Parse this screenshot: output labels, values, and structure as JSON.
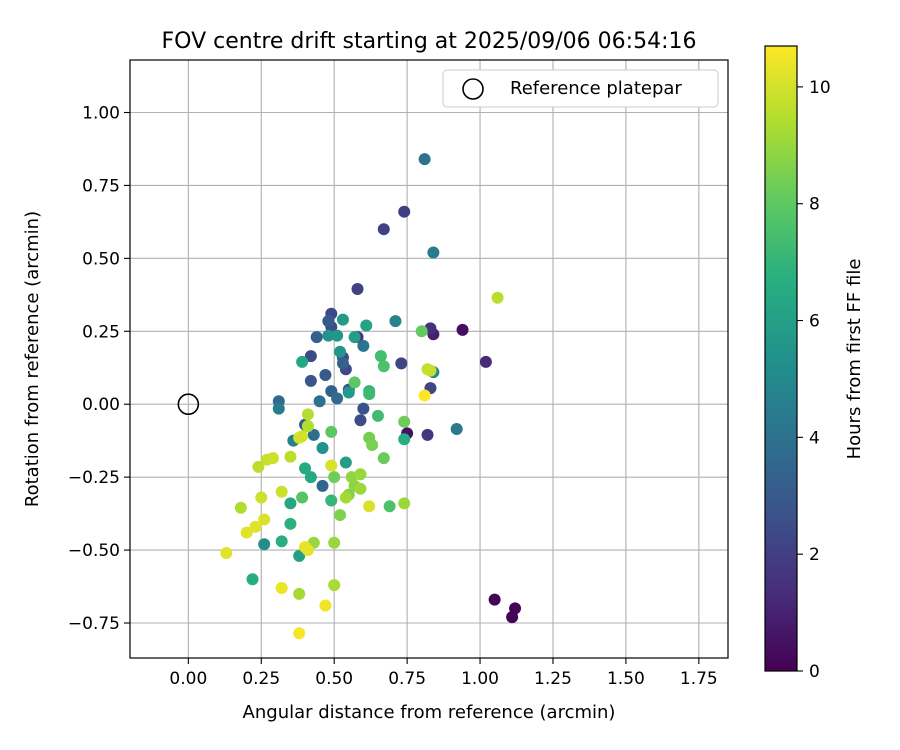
{
  "chart_data": {
    "type": "scatter",
    "title": "FOV centre drift starting at 2025/09/06 06:54:16",
    "xlabel": "Angular distance from reference (arcmin)",
    "ylabel": "Rotation from reference (arcmin)",
    "xlim": [
      -0.2,
      1.85
    ],
    "ylim": [
      -0.87,
      1.18
    ],
    "xticks": [
      "0.00",
      "0.25",
      "0.50",
      "0.75",
      "1.00",
      "1.25",
      "1.50",
      "1.75"
    ],
    "yticks": [
      "−0.75",
      "−0.50",
      "−0.25",
      "0.00",
      "0.25",
      "0.50",
      "0.75",
      "1.00"
    ],
    "grid": true,
    "legend": {
      "position": "top-right",
      "entries": [
        {
          "label": "Reference platepar",
          "marker": "open-circle"
        }
      ]
    },
    "reference_point": {
      "x": 0.0,
      "y": 0.0
    },
    "colorbar": {
      "label": "Hours from first FF file",
      "colormap": "viridis",
      "range": [
        0,
        10.7
      ],
      "ticks": [
        "0",
        "2",
        "4",
        "6",
        "8",
        "10"
      ]
    },
    "series": [
      {
        "points": [
          {
            "x": 1.05,
            "y": -0.67,
            "h": 0.1
          },
          {
            "x": 1.11,
            "y": -0.73,
            "h": 0.1
          },
          {
            "x": 1.12,
            "y": -0.7,
            "h": 0.1
          },
          {
            "x": 0.94,
            "y": 0.255,
            "h": 0.4
          },
          {
            "x": 0.75,
            "y": -0.1,
            "h": 0.5
          },
          {
            "x": 0.84,
            "y": 0.24,
            "h": 0.9
          },
          {
            "x": 1.02,
            "y": 0.145,
            "h": 1.3
          },
          {
            "x": 0.83,
            "y": 0.26,
            "h": 1.4
          },
          {
            "x": 0.58,
            "y": 0.23,
            "h": 1.6
          },
          {
            "x": 0.82,
            "y": -0.105,
            "h": 1.7
          },
          {
            "x": 0.74,
            "y": 0.66,
            "h": 2.0
          },
          {
            "x": 0.67,
            "y": 0.6,
            "h": 2.1
          },
          {
            "x": 0.58,
            "y": 0.395,
            "h": 2.1
          },
          {
            "x": 0.83,
            "y": 0.055,
            "h": 2.2
          },
          {
            "x": 0.73,
            "y": 0.14,
            "h": 2.2
          },
          {
            "x": 0.49,
            "y": 0.31,
            "h": 2.3
          },
          {
            "x": 0.53,
            "y": 0.16,
            "h": 2.3
          },
          {
            "x": 0.54,
            "y": 0.12,
            "h": 2.4
          },
          {
            "x": 0.42,
            "y": 0.165,
            "h": 2.4
          },
          {
            "x": 0.59,
            "y": -0.055,
            "h": 2.5
          },
          {
            "x": 0.49,
            "y": 0.265,
            "h": 2.5
          },
          {
            "x": 0.55,
            "y": 0.05,
            "h": 2.6
          },
          {
            "x": 0.6,
            "y": -0.015,
            "h": 2.7
          },
          {
            "x": 0.42,
            "y": 0.08,
            "h": 2.8
          },
          {
            "x": 0.47,
            "y": 0.1,
            "h": 3.0
          },
          {
            "x": 0.48,
            "y": 0.285,
            "h": 3.0
          },
          {
            "x": 0.4,
            "y": -0.07,
            "h": 3.2
          },
          {
            "x": 0.44,
            "y": 0.23,
            "h": 3.2
          },
          {
            "x": 0.49,
            "y": 0.045,
            "h": 3.3
          },
          {
            "x": 0.53,
            "y": 0.14,
            "h": 3.4
          },
          {
            "x": 0.46,
            "y": -0.28,
            "h": 3.5
          },
          {
            "x": 0.31,
            "y": 0.01,
            "h": 3.6
          },
          {
            "x": 0.51,
            "y": 0.02,
            "h": 3.7
          },
          {
            "x": 0.43,
            "y": -0.105,
            "h": 3.8
          },
          {
            "x": 0.81,
            "y": 0.84,
            "h": 4.0
          },
          {
            "x": 0.45,
            "y": 0.01,
            "h": 4.0
          },
          {
            "x": 0.6,
            "y": 0.2,
            "h": 4.1
          },
          {
            "x": 0.92,
            "y": -0.085,
            "h": 4.3
          },
          {
            "x": 0.84,
            "y": 0.52,
            "h": 4.4
          },
          {
            "x": 0.31,
            "y": -0.015,
            "h": 4.5
          },
          {
            "x": 0.36,
            "y": -0.125,
            "h": 4.6
          },
          {
            "x": 0.71,
            "y": 0.285,
            "h": 4.8
          },
          {
            "x": 0.84,
            "y": 0.11,
            "h": 5.0
          },
          {
            "x": 0.26,
            "y": -0.48,
            "h": 5.2
          },
          {
            "x": 0.46,
            "y": -0.15,
            "h": 5.4
          },
          {
            "x": 0.48,
            "y": 0.235,
            "h": 5.5
          },
          {
            "x": 0.52,
            "y": 0.18,
            "h": 5.6
          },
          {
            "x": 0.51,
            "y": 0.235,
            "h": 5.6
          },
          {
            "x": 0.55,
            "y": 0.04,
            "h": 5.7
          },
          {
            "x": 0.53,
            "y": 0.29,
            "h": 5.8
          },
          {
            "x": 0.54,
            "y": -0.2,
            "h": 5.9
          },
          {
            "x": 0.38,
            "y": -0.52,
            "h": 6.0
          },
          {
            "x": 0.57,
            "y": 0.23,
            "h": 6.0
          },
          {
            "x": 0.61,
            "y": 0.27,
            "h": 6.2
          },
          {
            "x": 0.39,
            "y": 0.145,
            "h": 6.3
          },
          {
            "x": 0.35,
            "y": -0.34,
            "h": 6.3
          },
          {
            "x": 0.42,
            "y": -0.25,
            "h": 6.4
          },
          {
            "x": 0.4,
            "y": -0.22,
            "h": 6.5
          },
          {
            "x": 0.22,
            "y": -0.6,
            "h": 6.6
          },
          {
            "x": 0.74,
            "y": -0.12,
            "h": 6.6
          },
          {
            "x": 0.32,
            "y": -0.47,
            "h": 6.7
          },
          {
            "x": 0.35,
            "y": -0.41,
            "h": 6.8
          },
          {
            "x": 0.62,
            "y": 0.045,
            "h": 7.0
          },
          {
            "x": 0.49,
            "y": -0.33,
            "h": 7.1
          },
          {
            "x": 0.62,
            "y": 0.035,
            "h": 7.2
          },
          {
            "x": 0.65,
            "y": -0.04,
            "h": 7.3
          },
          {
            "x": 0.66,
            "y": 0.165,
            "h": 7.4
          },
          {
            "x": 0.67,
            "y": 0.13,
            "h": 7.6
          },
          {
            "x": 0.69,
            "y": -0.35,
            "h": 7.6
          },
          {
            "x": 0.39,
            "y": -0.32,
            "h": 7.8
          },
          {
            "x": 0.49,
            "y": -0.095,
            "h": 8.0
          },
          {
            "x": 0.57,
            "y": 0.075,
            "h": 8.0
          },
          {
            "x": 0.8,
            "y": 0.25,
            "h": 8.1
          },
          {
            "x": 0.67,
            "y": -0.185,
            "h": 8.2
          },
          {
            "x": 0.74,
            "y": -0.06,
            "h": 8.3
          },
          {
            "x": 0.5,
            "y": -0.25,
            "h": 8.3
          },
          {
            "x": 0.62,
            "y": -0.115,
            "h": 8.4
          },
          {
            "x": 0.63,
            "y": -0.14,
            "h": 8.5
          },
          {
            "x": 0.52,
            "y": -0.38,
            "h": 8.6
          },
          {
            "x": 0.55,
            "y": -0.31,
            "h": 8.7
          },
          {
            "x": 0.57,
            "y": -0.28,
            "h": 8.8
          },
          {
            "x": 0.56,
            "y": -0.25,
            "h": 8.9
          },
          {
            "x": 0.59,
            "y": -0.24,
            "h": 9.0
          },
          {
            "x": 0.43,
            "y": -0.475,
            "h": 9.0
          },
          {
            "x": 0.5,
            "y": -0.475,
            "h": 9.0
          },
          {
            "x": 0.74,
            "y": -0.34,
            "h": 9.1
          },
          {
            "x": 0.59,
            "y": -0.29,
            "h": 9.1
          },
          {
            "x": 0.54,
            "y": -0.32,
            "h": 9.2
          },
          {
            "x": 0.38,
            "y": -0.65,
            "h": 9.2
          },
          {
            "x": 0.5,
            "y": -0.62,
            "h": 9.3
          },
          {
            "x": 0.18,
            "y": -0.355,
            "h": 9.4
          },
          {
            "x": 0.41,
            "y": -0.035,
            "h": 9.5
          },
          {
            "x": 0.41,
            "y": -0.075,
            "h": 9.5
          },
          {
            "x": 0.35,
            "y": -0.18,
            "h": 9.6
          },
          {
            "x": 0.24,
            "y": -0.215,
            "h": 9.6
          },
          {
            "x": 1.06,
            "y": 0.365,
            "h": 9.6
          },
          {
            "x": 0.82,
            "y": 0.12,
            "h": 9.7
          },
          {
            "x": 0.83,
            "y": 0.115,
            "h": 9.8
          },
          {
            "x": 0.27,
            "y": -0.19,
            "h": 9.8
          },
          {
            "x": 0.29,
            "y": -0.185,
            "h": 9.9
          },
          {
            "x": 0.32,
            "y": -0.3,
            "h": 9.9
          },
          {
            "x": 0.25,
            "y": -0.32,
            "h": 9.9
          },
          {
            "x": 0.39,
            "y": -0.11,
            "h": 10.0
          },
          {
            "x": 0.38,
            "y": -0.115,
            "h": 10.0
          },
          {
            "x": 0.49,
            "y": -0.21,
            "h": 10.1
          },
          {
            "x": 0.62,
            "y": -0.35,
            "h": 10.1
          },
          {
            "x": 0.26,
            "y": -0.395,
            "h": 10.1
          },
          {
            "x": 0.23,
            "y": -0.42,
            "h": 10.2
          },
          {
            "x": 0.2,
            "y": -0.44,
            "h": 10.2
          },
          {
            "x": 0.13,
            "y": -0.51,
            "h": 10.2
          },
          {
            "x": 0.41,
            "y": -0.5,
            "h": 10.3
          },
          {
            "x": 0.4,
            "y": -0.49,
            "h": 10.3
          },
          {
            "x": 0.32,
            "y": -0.63,
            "h": 10.4
          },
          {
            "x": 0.47,
            "y": -0.69,
            "h": 10.5
          },
          {
            "x": 0.38,
            "y": -0.785,
            "h": 10.6
          },
          {
            "x": 0.81,
            "y": 0.03,
            "h": 10.7
          }
        ]
      }
    ]
  }
}
